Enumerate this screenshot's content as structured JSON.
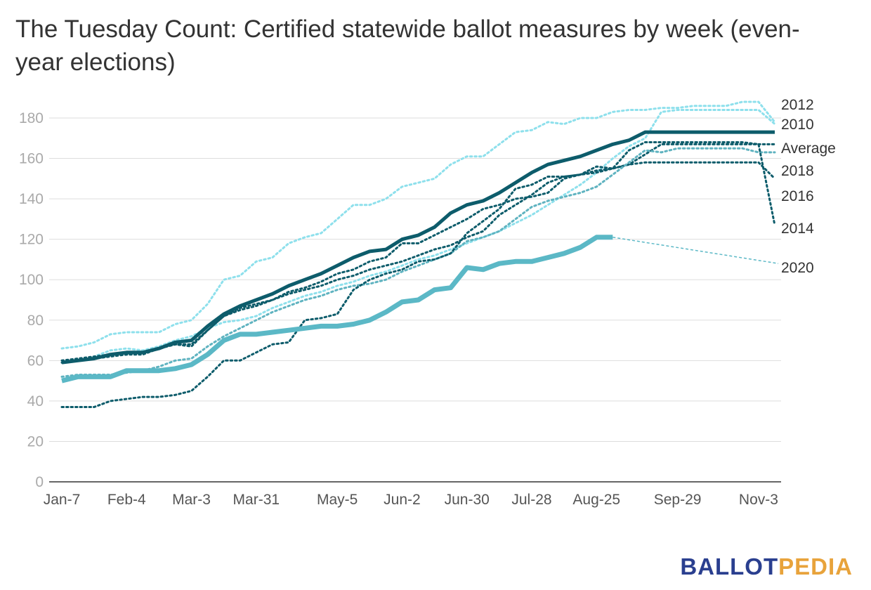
{
  "title": "The Tuesday Count: Certified statewide ballot measures by week (even-year elections)",
  "logo": {
    "part1": "BALLOT",
    "part2": "PEDIA"
  },
  "colors": {
    "dark_teal": "#0d5c6b",
    "mid_teal": "#5bb8c6",
    "light_teal": "#8ee0ec",
    "dot_teal": "#5fb3c0",
    "grid": "#dddddd",
    "axis_text": "#aaaaaa"
  },
  "chart_data": {
    "type": "line",
    "title": "The Tuesday Count: Certified statewide ballot measures by week (even-year elections)",
    "xlabel": "",
    "ylabel": "",
    "ylim": [
      0,
      180
    ],
    "yticks": [
      0,
      20,
      40,
      60,
      80,
      100,
      120,
      140,
      160,
      180
    ],
    "x_week_count": 45,
    "xticks": [
      {
        "week": 0,
        "label": "Jan-7"
      },
      {
        "week": 4,
        "label": "Feb-4"
      },
      {
        "week": 8,
        "label": "Mar-3"
      },
      {
        "week": 12,
        "label": "Mar-31"
      },
      {
        "week": 17,
        "label": "May-5"
      },
      {
        "week": 21,
        "label": "Jun-2"
      },
      {
        "week": 25,
        "label": "Jun-30"
      },
      {
        "week": 29,
        "label": "Jul-28"
      },
      {
        "week": 33,
        "label": "Aug-25"
      },
      {
        "week": 38,
        "label": "Sep-29"
      },
      {
        "week": 43,
        "label": "Nov-3"
      }
    ],
    "grid": true,
    "legend": "right-end labels",
    "series": [
      {
        "name": "2012",
        "style": "dotted",
        "color": "#8ee0ec",
        "values": [
          66,
          67,
          69,
          73,
          74,
          74,
          74,
          78,
          80,
          88,
          100,
          102,
          109,
          111,
          118,
          121,
          123,
          130,
          137,
          137,
          140,
          146,
          148,
          150,
          157,
          161,
          161,
          167,
          173,
          174,
          178,
          177,
          180,
          180,
          183,
          184,
          184,
          185,
          185,
          186,
          186,
          186,
          188,
          188,
          178
        ]
      },
      {
        "name": "2010",
        "style": "dotted",
        "color": "#8ee0ec",
        "values": [
          59,
          60,
          62,
          65,
          66,
          65,
          67,
          70,
          72,
          76,
          79,
          80,
          82,
          86,
          89,
          92,
          94,
          97,
          99,
          102,
          104,
          107,
          110,
          112,
          115,
          118,
          121,
          124,
          128,
          132,
          137,
          142,
          147,
          153,
          160,
          166,
          170,
          183,
          184,
          184,
          184,
          184,
          184,
          184,
          177
        ]
      },
      {
        "name": "Average",
        "style": "dotted",
        "color": "#0d5c6b",
        "values": [
          60,
          61,
          62,
          63,
          63,
          64,
          66,
          68,
          68,
          75,
          82,
          86,
          88,
          90,
          94,
          96,
          99,
          103,
          105,
          109,
          111,
          118,
          118,
          122,
          126,
          130,
          135,
          137,
          140,
          141,
          143,
          150,
          152,
          153,
          155,
          157,
          162,
          167,
          167,
          167,
          167,
          167,
          167,
          167,
          167
        ]
      },
      {
        "name": "2018",
        "style": "dotted",
        "color": "#0d5c6b",
        "values": [
          59,
          60,
          61,
          62,
          63,
          63,
          66,
          68,
          67,
          75,
          82,
          85,
          87,
          90,
          93,
          95,
          97,
          100,
          102,
          105,
          107,
          109,
          112,
          115,
          117,
          121,
          124,
          132,
          137,
          142,
          148,
          151,
          152,
          154,
          155,
          157,
          158,
          158,
          158,
          158,
          158,
          158,
          158,
          158,
          150
        ]
      },
      {
        "name": "2016",
        "style": "dotted",
        "color": "#5fb3c0",
        "values": [
          52,
          53,
          53,
          53,
          54,
          55,
          57,
          60,
          61,
          67,
          72,
          76,
          80,
          84,
          87,
          90,
          92,
          95,
          97,
          98,
          100,
          104,
          107,
          110,
          113,
          119,
          121,
          124,
          130,
          136,
          139,
          141,
          143,
          146,
          152,
          158,
          164,
          163,
          165,
          165,
          165,
          165,
          165,
          163,
          163
        ]
      },
      {
        "name": "2014",
        "style": "dotted",
        "color": "#0d5c6b",
        "values": [
          37,
          37,
          37,
          40,
          41,
          42,
          42,
          43,
          45,
          52,
          60,
          60,
          64,
          68,
          69,
          80,
          81,
          83,
          95,
          100,
          103,
          105,
          109,
          110,
          113,
          123,
          129,
          135,
          145,
          147,
          151,
          151,
          152,
          156,
          155,
          164,
          168,
          168,
          168,
          168,
          168,
          168,
          168,
          167,
          127
        ]
      },
      {
        "name": "",
        "style": "solid-thick",
        "color": "#0d5c6b",
        "values": [
          59,
          60,
          61,
          63,
          64,
          64,
          66,
          69,
          70,
          77,
          83,
          87,
          90,
          93,
          97,
          100,
          103,
          107,
          111,
          114,
          115,
          120,
          122,
          126,
          133,
          137,
          139,
          143,
          148,
          153,
          157,
          159,
          161,
          164,
          167,
          169,
          173,
          173,
          173,
          173,
          173,
          173,
          173,
          173,
          173
        ]
      },
      {
        "name": "2020",
        "style": "solid-thick-light",
        "color": "#5bb8c6",
        "values": [
          50,
          52,
          52,
          52,
          55,
          55,
          55,
          56,
          58,
          63,
          70,
          73,
          73,
          74,
          75,
          76,
          77,
          77,
          78,
          80,
          84,
          89,
          90,
          95,
          96,
          106,
          105,
          108,
          109,
          109,
          111,
          113,
          116,
          121,
          121
        ],
        "projection_end": 108
      }
    ]
  }
}
